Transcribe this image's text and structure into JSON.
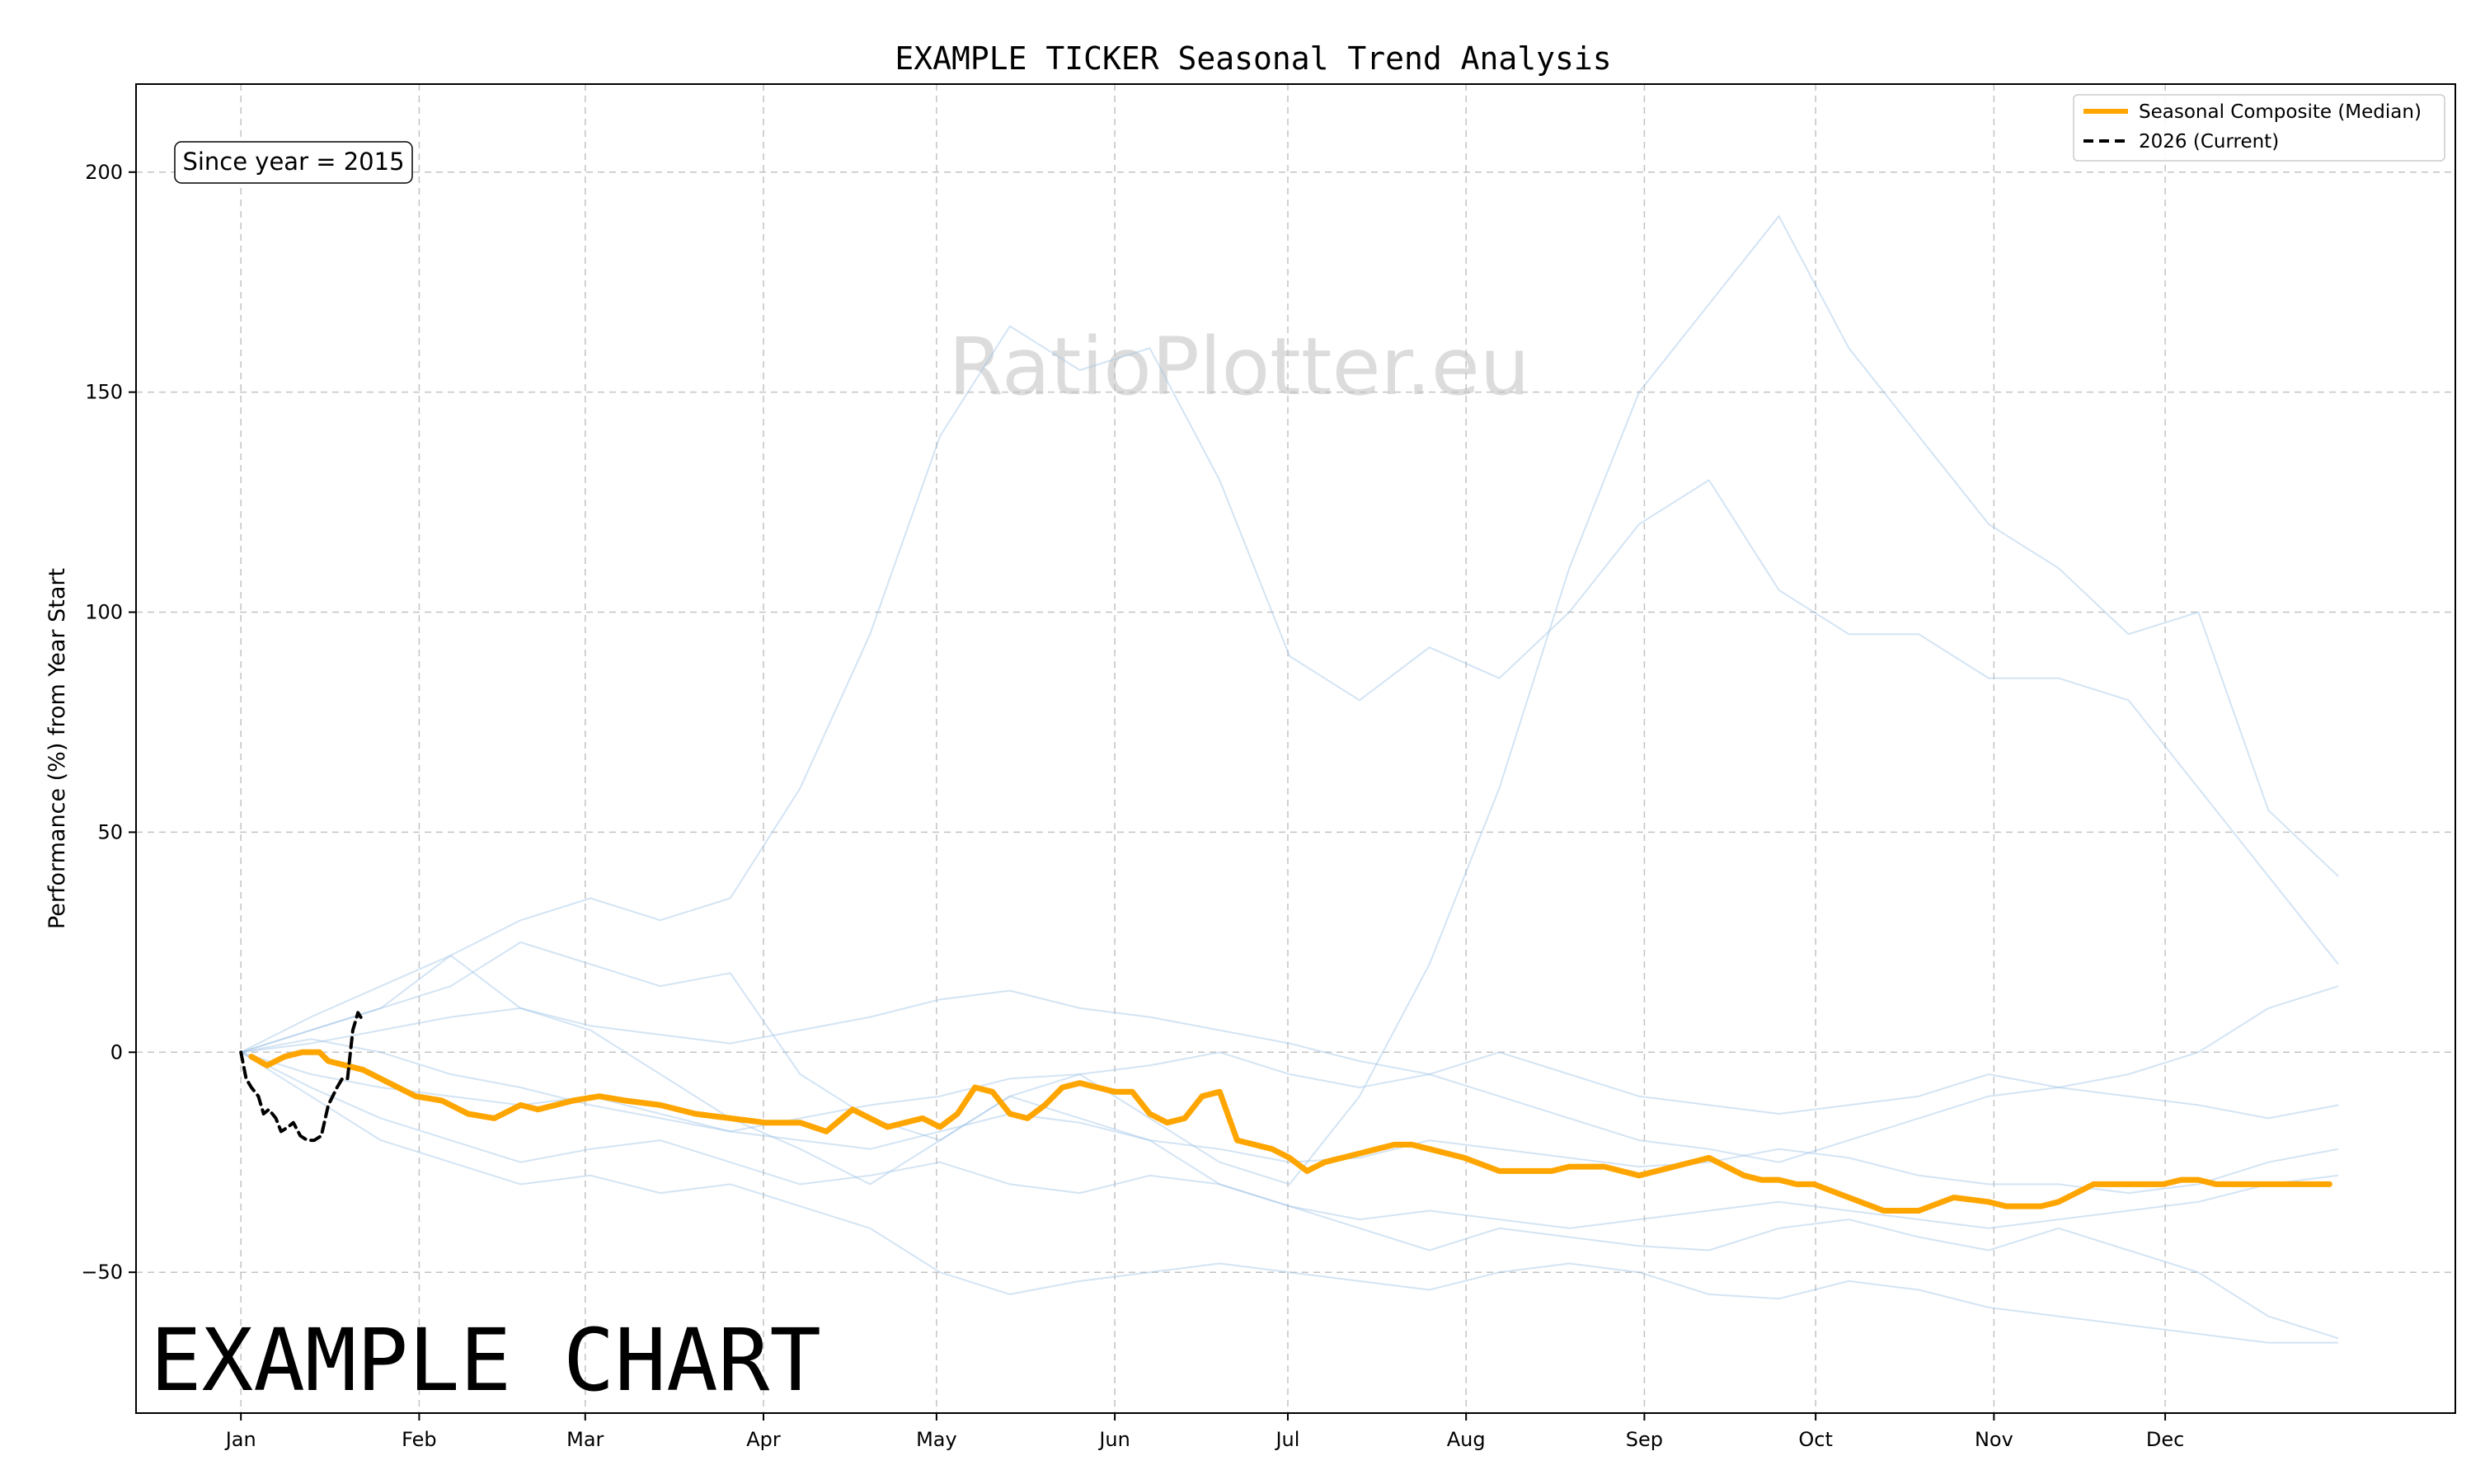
{
  "chart_data": {
    "type": "line",
    "title": "EXAMPLE TICKER Seasonal Trend Analysis",
    "xlabel": "",
    "ylabel": "Performance (%) from Year Start",
    "ylim": [
      -82,
      220
    ],
    "xlim": [
      -0.6,
      12.67
    ],
    "x_ticks": [
      {
        "label": "Jan",
        "x": 0
      },
      {
        "label": "Feb",
        "x": 1.02
      },
      {
        "label": "Mar",
        "x": 1.97
      },
      {
        "label": "Apr",
        "x": 2.99
      },
      {
        "label": "May",
        "x": 3.98
      },
      {
        "label": "Jun",
        "x": 5.0
      },
      {
        "label": "Jul",
        "x": 5.99
      },
      {
        "label": "Aug",
        "x": 7.01
      },
      {
        "label": "Sep",
        "x": 8.03
      },
      {
        "label": "Oct",
        "x": 9.01
      },
      {
        "label": "Nov",
        "x": 10.03
      },
      {
        "label": "Dec",
        "x": 11.01
      }
    ],
    "y_ticks": [
      -50,
      0,
      50,
      100,
      150,
      200
    ],
    "grid": true,
    "legend_position": "top-right",
    "annotation": "Since year = 2015",
    "watermark": "RatioPlotter.eu",
    "overlay_text": "EXAMPLE CHART",
    "colors": {
      "median": "#FFA500",
      "current": "#000000",
      "history": "#9ec3e6"
    },
    "series": [
      {
        "name": "Seasonal Composite (Median)",
        "style": "solid",
        "color": "#FFA500",
        "x": [
          0.06,
          0.15,
          0.25,
          0.35,
          0.45,
          0.5,
          0.6,
          0.7,
          0.85,
          1.0,
          1.15,
          1.3,
          1.45,
          1.6,
          1.7,
          1.9,
          2.05,
          2.2,
          2.4,
          2.6,
          2.8,
          3.0,
          3.2,
          3.35,
          3.5,
          3.6,
          3.7,
          3.8,
          3.9,
          4.0,
          4.1,
          4.2,
          4.3,
          4.4,
          4.5,
          4.6,
          4.7,
          4.8,
          4.9,
          5.0,
          5.1,
          5.2,
          5.3,
          5.4,
          5.5,
          5.6,
          5.7,
          5.8,
          5.9,
          6.0,
          6.1,
          6.2,
          6.3,
          6.4,
          6.5,
          6.6,
          6.7,
          6.8,
          7.0,
          7.2,
          7.4,
          7.5,
          7.6,
          7.8,
          8.0,
          8.2,
          8.4,
          8.5,
          8.6,
          8.7,
          8.8,
          8.9,
          9.0,
          9.2,
          9.4,
          9.6,
          9.8,
          10.0,
          10.1,
          10.2,
          10.3,
          10.4,
          10.5,
          10.6,
          10.7,
          10.8,
          10.9,
          11.0,
          11.1,
          11.2,
          11.3,
          11.4,
          11.5,
          11.6,
          11.7,
          11.8,
          11.9,
          11.95
        ],
        "values": [
          -1,
          -3,
          -1,
          0,
          0,
          -2,
          -3,
          -4,
          -7,
          -10,
          -11,
          -14,
          -15,
          -12,
          -13,
          -11,
          -10,
          -11,
          -12,
          -14,
          -15,
          -16,
          -16,
          -18,
          -13,
          -15,
          -17,
          -16,
          -15,
          -17,
          -14,
          -8,
          -9,
          -14,
          -15,
          -12,
          -8,
          -7,
          -8,
          -9,
          -9,
          -14,
          -16,
          -15,
          -10,
          -9,
          -20,
          -21,
          -22,
          -24,
          -27,
          -25,
          -24,
          -23,
          -22,
          -21,
          -21,
          -22,
          -24,
          -27,
          -27,
          -27,
          -26,
          -26,
          -28,
          -26,
          -24,
          -26,
          -28,
          -29,
          -29,
          -30,
          -30,
          -33,
          -36,
          -36,
          -33,
          -34,
          -35,
          -35,
          -35,
          -34,
          -32,
          -30,
          -30,
          -30,
          -30,
          -30,
          -29,
          -29,
          -30,
          -30,
          -30,
          -30,
          -30,
          -30,
          -30,
          -30
        ]
      },
      {
        "name": "2026 (Current)",
        "style": "dashed",
        "color": "#000000",
        "x": [
          0,
          0.03,
          0.06,
          0.1,
          0.13,
          0.16,
          0.2,
          0.23,
          0.27,
          0.3,
          0.34,
          0.38,
          0.42,
          0.46,
          0.5,
          0.55,
          0.58,
          0.61,
          0.64,
          0.67,
          0.7
        ],
        "values": [
          0,
          -6,
          -8,
          -10,
          -14,
          -13,
          -15,
          -18,
          -17,
          -16,
          -19,
          -20,
          -20,
          -19,
          -12,
          -8,
          -6,
          -6,
          5,
          9,
          7
        ]
      }
    ],
    "history_series": [
      {
        "x": [
          0,
          0.4,
          0.8,
          1.2,
          1.6,
          2.0,
          2.4,
          2.8,
          3.2,
          3.6,
          4.0,
          4.4,
          4.8,
          5.2,
          5.6,
          6.0,
          6.4,
          6.8,
          7.2,
          7.6,
          8.0,
          8.4,
          8.8,
          9.2,
          9.6,
          10.0,
          10.4,
          10.8,
          11.2,
          11.6,
          12.0
        ],
        "values": [
          0,
          5,
          10,
          22,
          30,
          35,
          30,
          35,
          60,
          95,
          140,
          165,
          155,
          160,
          130,
          90,
          80,
          92,
          85,
          100,
          120,
          130,
          105,
          95,
          95,
          85,
          85,
          80,
          60,
          40,
          20
        ]
      },
      {
        "x": [
          0,
          0.4,
          0.8,
          1.2,
          1.6,
          2.0,
          2.4,
          2.8,
          3.2,
          3.6,
          4.0,
          4.4,
          4.8,
          5.2,
          5.6,
          6.0,
          6.4,
          6.8,
          7.2,
          7.6,
          8.0,
          8.4,
          8.8,
          9.2,
          9.6,
          10.0,
          10.4,
          10.8,
          11.2,
          11.6,
          12.0
        ],
        "values": [
          0,
          8,
          15,
          22,
          10,
          5,
          -5,
          -15,
          -22,
          -30,
          -20,
          -10,
          -5,
          -15,
          -25,
          -30,
          -10,
          20,
          60,
          110,
          150,
          170,
          190,
          160,
          140,
          120,
          110,
          95,
          100,
          55,
          40
        ]
      },
      {
        "x": [
          0,
          0.4,
          0.8,
          1.2,
          1.6,
          2.0,
          2.4,
          2.8,
          3.2,
          3.6,
          4.0,
          4.4,
          4.8,
          5.2,
          5.6,
          6.0,
          6.4,
          6.8,
          7.2,
          7.6,
          8.0,
          8.4,
          8.8,
          9.2,
          9.6,
          10.0,
          10.4,
          10.8,
          11.2,
          11.6,
          12.0
        ],
        "values": [
          0,
          5,
          10,
          15,
          25,
          20,
          15,
          18,
          -5,
          -15,
          -20,
          -10,
          -15,
          -20,
          -30,
          -35,
          -40,
          -45,
          -40,
          -42,
          -44,
          -45,
          -40,
          -38,
          -42,
          -45,
          -40,
          -45,
          -50,
          -60,
          -65
        ]
      },
      {
        "x": [
          0,
          0.4,
          0.8,
          1.2,
          1.6,
          2.0,
          2.4,
          2.8,
          3.2,
          3.6,
          4.0,
          4.4,
          4.8,
          5.2,
          5.6,
          6.0,
          6.4,
          6.8,
          7.2,
          7.6,
          8.0,
          8.4,
          8.8,
          9.2,
          9.6,
          10.0,
          10.4,
          10.8,
          11.2,
          11.6,
          12.0
        ],
        "values": [
          0,
          -10,
          -20,
          -25,
          -30,
          -28,
          -32,
          -30,
          -35,
          -40,
          -50,
          -55,
          -52,
          -50,
          -48,
          -50,
          -52,
          -54,
          -50,
          -48,
          -50,
          -55,
          -56,
          -52,
          -54,
          -58,
          -60,
          -62,
          -64,
          -66,
          -66
        ]
      },
      {
        "x": [
          0,
          0.4,
          0.8,
          1.2,
          1.6,
          2.0,
          2.4,
          2.8,
          3.2,
          3.6,
          4.0,
          4.4,
          4.8,
          5.2,
          5.6,
          6.0,
          6.4,
          6.8,
          7.2,
          7.6,
          8.0,
          8.4,
          8.8,
          9.2,
          9.6,
          10.0,
          10.4,
          10.8,
          11.2,
          11.6,
          12.0
        ],
        "values": [
          0,
          3,
          0,
          -5,
          -8,
          -12,
          -15,
          -18,
          -20,
          -22,
          -18,
          -14,
          -16,
          -20,
          -22,
          -25,
          -24,
          -20,
          -22,
          -24,
          -26,
          -25,
          -22,
          -24,
          -28,
          -30,
          -30,
          -32,
          -30,
          -25,
          -22
        ]
      },
      {
        "x": [
          0,
          0.4,
          0.8,
          1.2,
          1.6,
          2.0,
          2.4,
          2.8,
          3.2,
          3.6,
          4.0,
          4.4,
          4.8,
          5.2,
          5.6,
          6.0,
          6.4,
          6.8,
          7.2,
          7.6,
          8.0,
          8.4,
          8.8,
          9.2,
          9.6,
          10.0,
          10.4,
          10.8,
          11.2,
          11.6,
          12.0
        ],
        "values": [
          0,
          -5,
          -8,
          -10,
          -12,
          -10,
          -14,
          -18,
          -15,
          -12,
          -10,
          -6,
          -5,
          -3,
          0,
          -5,
          -8,
          -5,
          0,
          -5,
          -10,
          -12,
          -14,
          -12,
          -10,
          -5,
          -8,
          -10,
          -12,
          -15,
          -12
        ]
      },
      {
        "x": [
          0,
          0.4,
          0.8,
          1.2,
          1.6,
          2.0,
          2.4,
          2.8,
          3.2,
          3.6,
          4.0,
          4.4,
          4.8,
          5.2,
          5.6,
          6.0,
          6.4,
          6.8,
          7.2,
          7.6,
          8.0,
          8.4,
          8.8,
          9.2,
          9.6,
          10.0,
          10.4,
          10.8,
          11.2,
          11.6,
          12.0
        ],
        "values": [
          0,
          2,
          5,
          8,
          10,
          6,
          4,
          2,
          5,
          8,
          12,
          14,
          10,
          8,
          5,
          2,
          -2,
          -5,
          -10,
          -15,
          -20,
          -22,
          -25,
          -20,
          -15,
          -10,
          -8,
          -5,
          0,
          10,
          15
        ]
      },
      {
        "x": [
          0,
          0.4,
          0.8,
          1.2,
          1.6,
          2.0,
          2.4,
          2.8,
          3.2,
          3.6,
          4.0,
          4.4,
          4.8,
          5.2,
          5.6,
          6.0,
          6.4,
          6.8,
          7.2,
          7.6,
          8.0,
          8.4,
          8.8,
          9.2,
          9.6,
          10.0,
          10.4,
          10.8,
          11.2,
          11.6,
          12.0
        ],
        "values": [
          0,
          -8,
          -15,
          -20,
          -25,
          -22,
          -20,
          -25,
          -30,
          -28,
          -25,
          -30,
          -32,
          -28,
          -30,
          -35,
          -38,
          -36,
          -38,
          -40,
          -38,
          -36,
          -34,
          -36,
          -38,
          -40,
          -38,
          -36,
          -34,
          -30,
          -28
        ]
      }
    ]
  },
  "legend": {
    "items": [
      {
        "label": "Seasonal Composite (Median)"
      },
      {
        "label": "2026 (Current)"
      }
    ]
  }
}
